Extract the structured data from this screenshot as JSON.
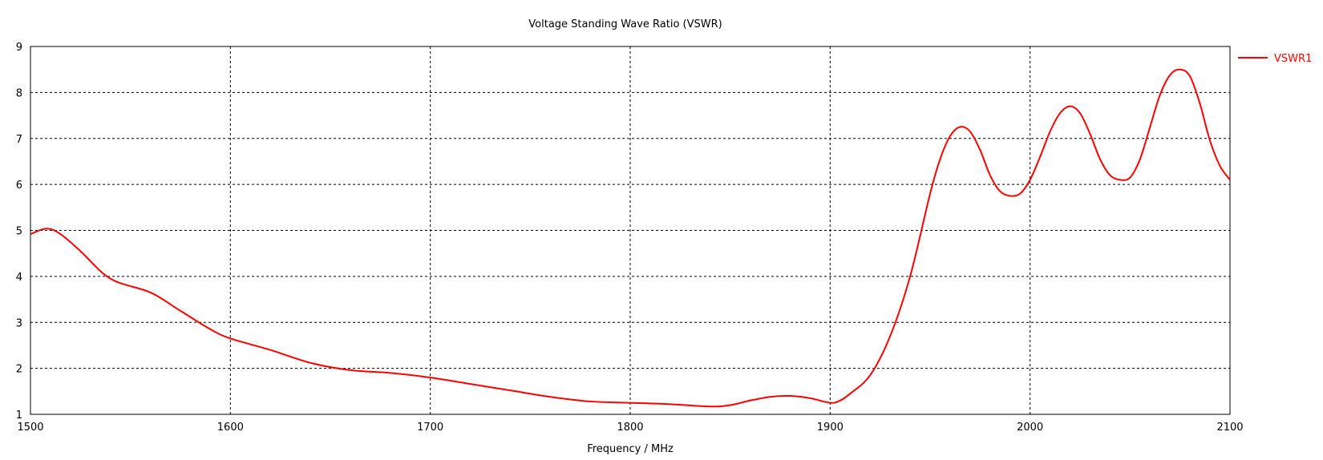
{
  "chart_data": {
    "type": "line",
    "title": "Voltage Standing Wave Ratio (VSWR)",
    "xlabel": "Frequency / MHz",
    "ylabel": "",
    "xlim": [
      1500,
      2100
    ],
    "ylim": [
      1,
      9
    ],
    "xticks": [
      1500,
      1600,
      1700,
      1800,
      1900,
      2000,
      2100
    ],
    "yticks": [
      1,
      2,
      3,
      4,
      5,
      6,
      7,
      8,
      9
    ],
    "grid": true,
    "legend_position": "top-right-outside",
    "series": [
      {
        "name": "VSWR1",
        "color": "#ff0000",
        "x": [
          1500,
          1508,
          1515,
          1525,
          1540,
          1560,
          1575,
          1590,
          1600,
          1620,
          1640,
          1660,
          1680,
          1700,
          1720,
          1740,
          1760,
          1780,
          1800,
          1820,
          1840,
          1850,
          1860,
          1870,
          1880,
          1890,
          1900,
          1905,
          1910,
          1920,
          1930,
          1940,
          1950,
          1955,
          1960,
          1965,
          1970,
          1975,
          1980,
          1985,
          1990,
          1995,
          2000,
          2005,
          2010,
          2015,
          2020,
          2025,
          2030,
          2035,
          2040,
          2045,
          2050,
          2055,
          2060,
          2065,
          2070,
          2075,
          2080,
          2085,
          2090,
          2095,
          2100
        ],
        "y": [
          4.92,
          5.04,
          4.92,
          4.55,
          3.95,
          3.65,
          3.25,
          2.85,
          2.65,
          2.4,
          2.12,
          1.96,
          1.9,
          1.8,
          1.66,
          1.52,
          1.38,
          1.28,
          1.25,
          1.22,
          1.17,
          1.2,
          1.3,
          1.38,
          1.4,
          1.35,
          1.25,
          1.3,
          1.45,
          1.85,
          2.7,
          4.0,
          5.8,
          6.55,
          7.05,
          7.25,
          7.15,
          6.75,
          6.2,
          5.85,
          5.75,
          5.8,
          6.1,
          6.6,
          7.15,
          7.55,
          7.7,
          7.55,
          7.1,
          6.55,
          6.2,
          6.1,
          6.15,
          6.55,
          7.25,
          7.95,
          8.38,
          8.5,
          8.35,
          7.75,
          6.95,
          6.4,
          6.1
        ]
      }
    ]
  }
}
